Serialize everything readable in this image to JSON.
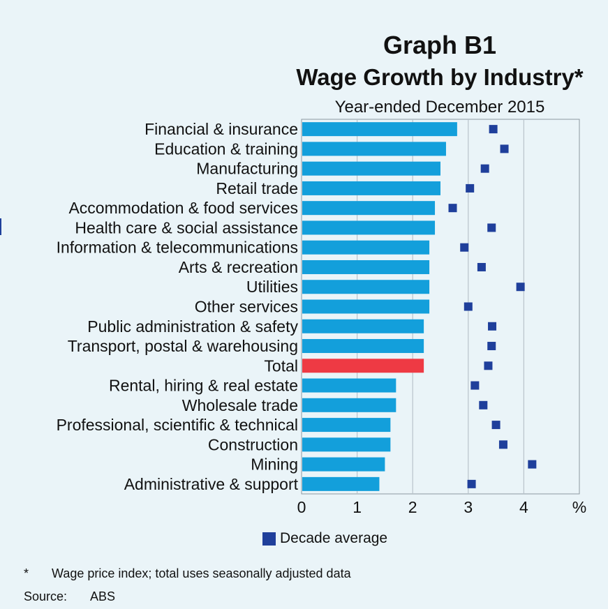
{
  "header": {
    "graph_number": "Graph B1",
    "title": "Wage Growth by Industry*",
    "subtitle": "Year-ended December 2015"
  },
  "colors": {
    "bar": "#139fdb",
    "total_bar": "#ee3a44",
    "marker": "#1f3f9b",
    "grid": "#b9c3cb",
    "background": "#eaf4f8"
  },
  "legend": {
    "label": "Decade average",
    "icon": "square-marker-icon"
  },
  "footnote": {
    "marker": "*",
    "text": "Wage price index; total uses seasonally adjusted data"
  },
  "source": {
    "label": "Source:",
    "value": "ABS"
  },
  "chart_data": {
    "type": "bar",
    "orientation": "horizontal",
    "title": "Wage Growth by Industry*",
    "subtitle": "Year-ended December 2015",
    "xlabel": "",
    "ylabel": "",
    "x_unit": "%",
    "xlim": [
      0,
      5
    ],
    "xticks": [
      0,
      1,
      2,
      3,
      4
    ],
    "grid": true,
    "legend_position": "bottom",
    "categories": [
      "Financial & insurance",
      "Education & training",
      "Manufacturing",
      "Retail trade",
      "Accommodation & food services",
      "Health care & social assistance",
      "Information & telecommunications",
      "Arts & recreation",
      "Utilities",
      "Other services",
      "Public administration & safety",
      "Transport, postal & warehousing",
      "Total",
      "Rental, hiring & real estate",
      "Wholesale trade",
      "Professional, scientific & technical",
      "Construction",
      "Mining",
      "Administrative & support"
    ],
    "highlight_category": "Total",
    "series": [
      {
        "name": "Year-ended December 2015",
        "kind": "bar",
        "values": [
          2.8,
          2.6,
          2.5,
          2.5,
          2.4,
          2.4,
          2.3,
          2.3,
          2.3,
          2.3,
          2.2,
          2.2,
          2.2,
          1.7,
          1.7,
          1.6,
          1.6,
          1.5,
          1.4
        ]
      },
      {
        "name": "Decade average",
        "kind": "marker",
        "values": [
          3.45,
          3.65,
          3.3,
          3.03,
          2.72,
          3.42,
          2.93,
          3.24,
          3.94,
          3.0,
          3.43,
          3.42,
          3.36,
          3.12,
          3.27,
          3.5,
          3.63,
          4.15,
          3.06
        ]
      }
    ]
  }
}
